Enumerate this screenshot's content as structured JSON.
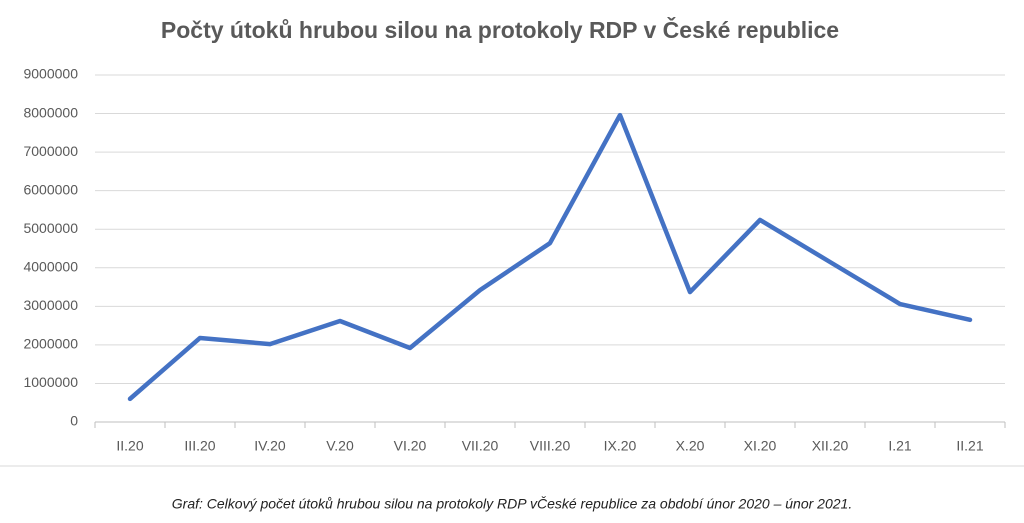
{
  "chart_data": {
    "type": "line",
    "title": "Počty útoků hrubou silou na protokoly RDP v České republice",
    "categories": [
      "II.20",
      "III.20",
      "IV.20",
      "V.20",
      "VI.20",
      "VII.20",
      "VIII.20",
      "IX.20",
      "X.20",
      "XI.20",
      "XII.20",
      "I.21",
      "II.21"
    ],
    "values": [
      600000,
      2180000,
      2020000,
      2620000,
      1920000,
      3420000,
      4640000,
      7960000,
      3370000,
      5240000,
      4150000,
      3060000,
      2650000
    ],
    "color": "#4472c4",
    "ylim": [
      0,
      9000000
    ],
    "yticks": [
      0,
      1000000,
      2000000,
      3000000,
      4000000,
      5000000,
      6000000,
      7000000,
      8000000,
      9000000
    ],
    "grid": true
  },
  "caption": "Graf: Celkový počet útoků hrubou silou na protokoly RDP vČeské republice za období únor 2020 – únor 2021."
}
